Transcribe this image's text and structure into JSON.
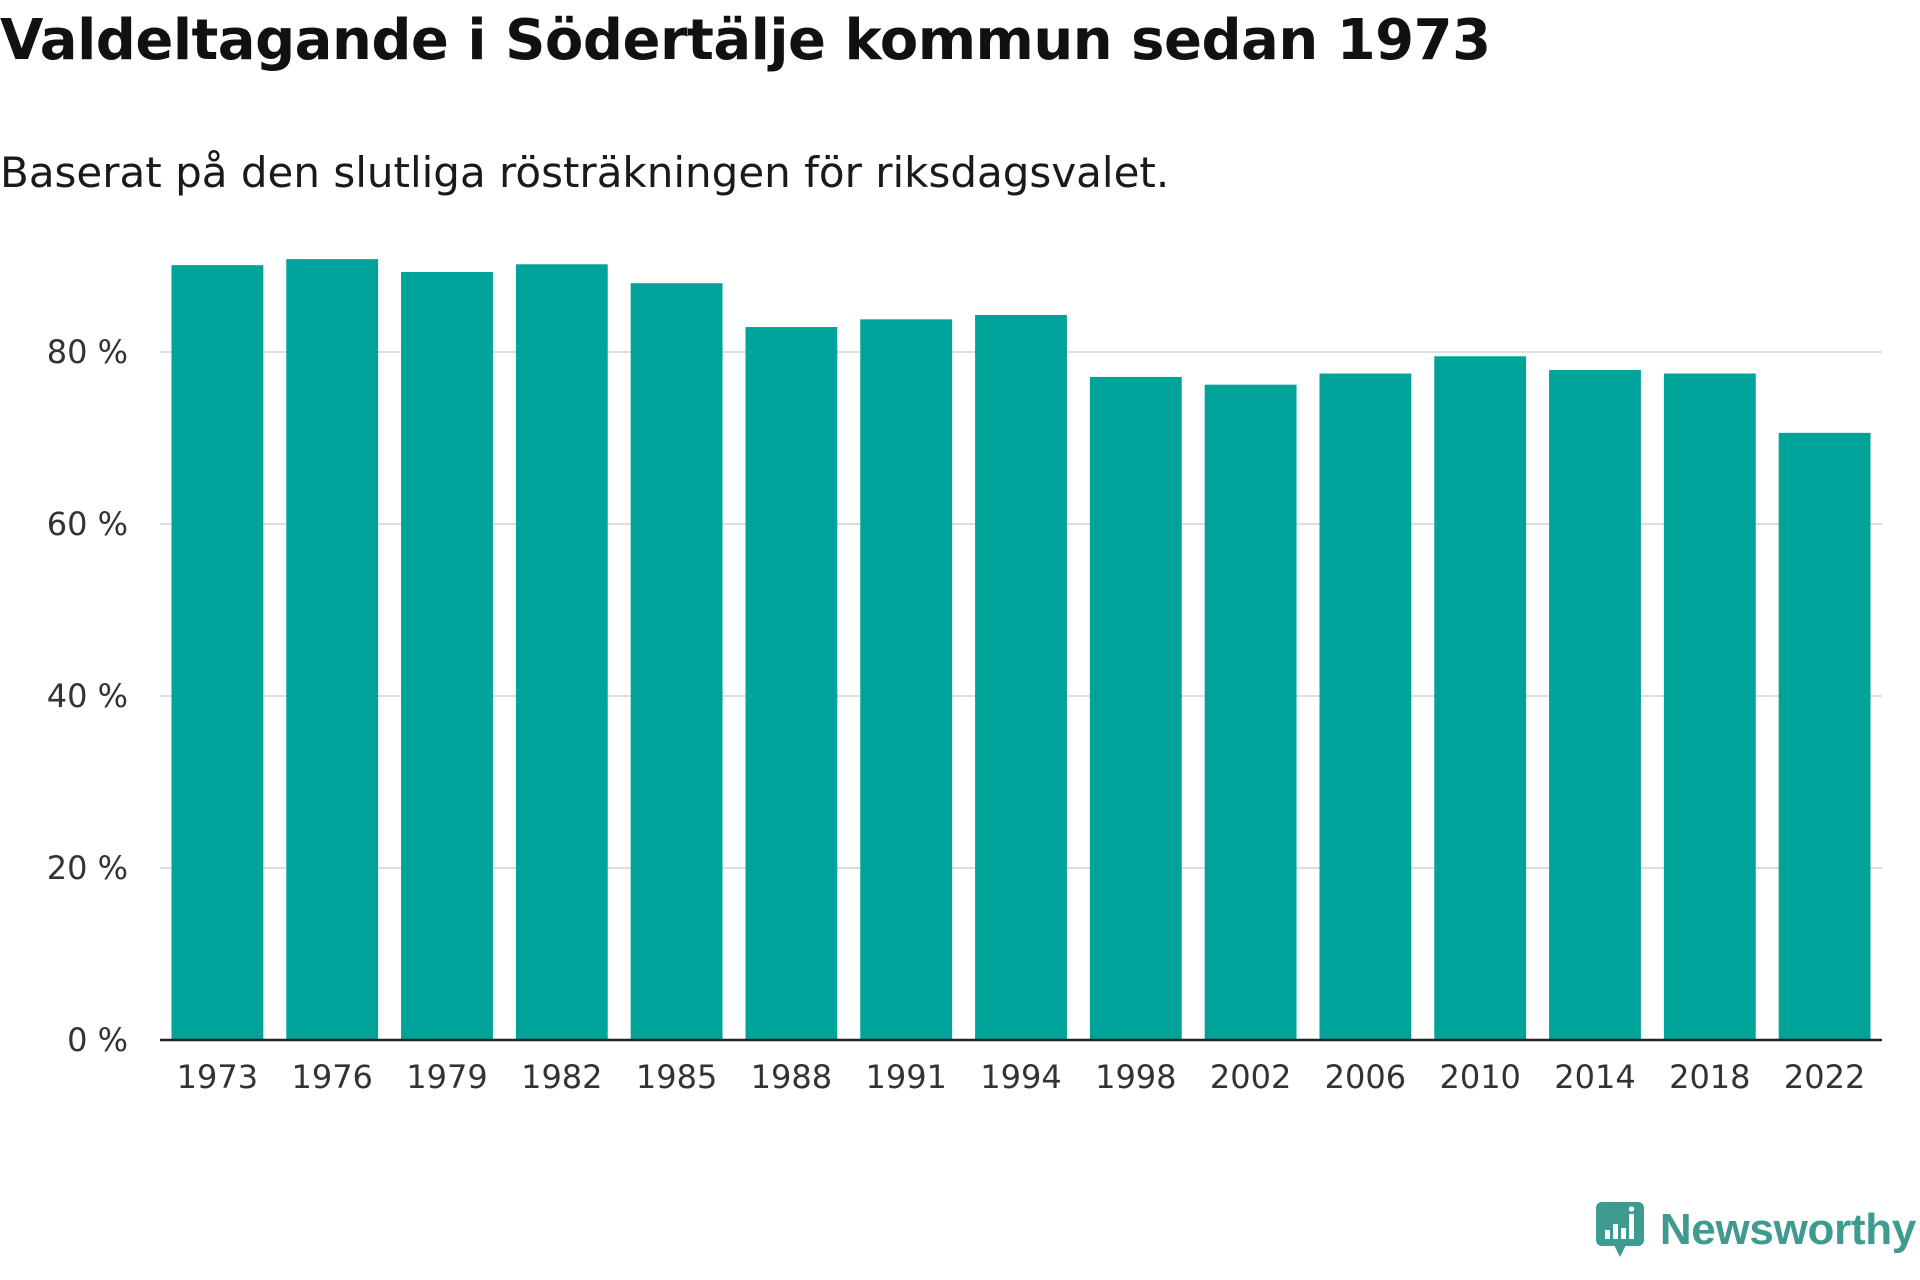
{
  "title": "Valdeltagande i Södertälje kommun sedan 1973",
  "subtitle": "Baserat på den slutliga rösträkningen för riksdagsvalet.",
  "brand": {
    "name": "Newsworthy",
    "color": "#3f9b90",
    "icon": "chart-speech-bubble-icon"
  },
  "chart_data": {
    "type": "bar",
    "categories": [
      "1973",
      "1976",
      "1979",
      "1982",
      "1985",
      "1988",
      "1991",
      "1994",
      "1998",
      "2002",
      "2006",
      "2010",
      "2014",
      "2018",
      "2022"
    ],
    "series": [
      {
        "values": [
          90.1,
          90.8,
          89.3,
          90.2,
          88.0,
          82.9,
          83.8,
          84.3,
          77.1,
          76.2,
          77.5,
          79.5,
          77.9,
          77.5,
          70.6
        ]
      }
    ],
    "ylim": [
      0,
      100
    ],
    "yticks": [
      0,
      20,
      40,
      60,
      80
    ],
    "ytick_labels": [
      "0 %",
      "20 %",
      "40 %",
      "60 %",
      "80 %"
    ],
    "grid": true,
    "bar_color": "#00a39a",
    "grid_color": "#dddddd",
    "axis_color": "#222222"
  }
}
